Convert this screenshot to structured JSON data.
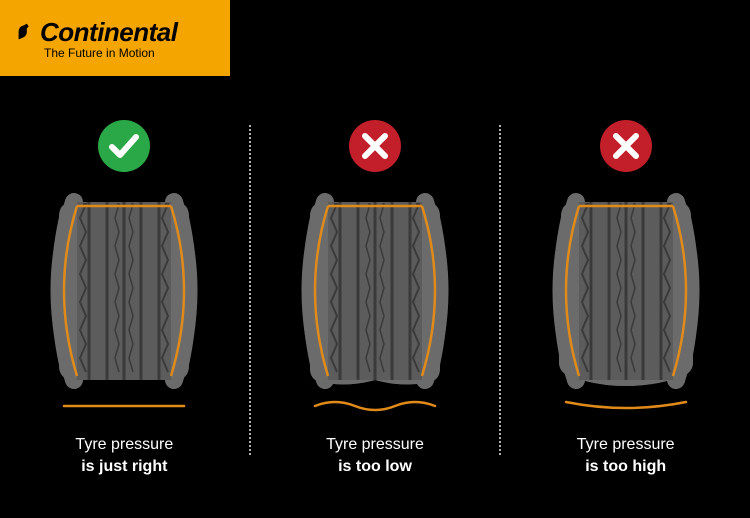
{
  "brand": {
    "name": "Continental",
    "tagline": "The Future in Motion",
    "badge_bg": "#f5a500",
    "text_color": "#000000"
  },
  "layout": {
    "bg_color": "#000000",
    "divider_color": "#b0b0b0",
    "caption_color": "#ffffff",
    "caption_fontsize": 16
  },
  "badges": {
    "ok": {
      "bg": "#2aa747",
      "glyph_color": "#ffffff"
    },
    "bad": {
      "bg": "#c21f2a",
      "glyph_color": "#ffffff"
    }
  },
  "tyre_style": {
    "body_fill": "#6b6b6b",
    "tread_fill": "#5c5c5c",
    "groove_color": "#3a3a3a",
    "inner_line_color": "#e08a1a",
    "ground_line_color": "#e08a1a",
    "groove_width": 3,
    "inner_line_width": 2.5,
    "ground_line_width": 2.5
  },
  "panels": [
    {
      "id": "just-right",
      "badge": "ok",
      "caption_line1": "Tyre pressure",
      "caption_line2": "is just right",
      "bottom_shape": "flat",
      "ground_shape": "flat"
    },
    {
      "id": "too-low",
      "badge": "bad",
      "caption_line1": "Tyre pressure",
      "caption_line2": "is too low",
      "bottom_shape": "sag",
      "ground_shape": "wave"
    },
    {
      "id": "too-high",
      "badge": "bad",
      "caption_line1": "Tyre pressure",
      "caption_line2": "is too high",
      "bottom_shape": "bulge",
      "ground_shape": "arc"
    }
  ]
}
